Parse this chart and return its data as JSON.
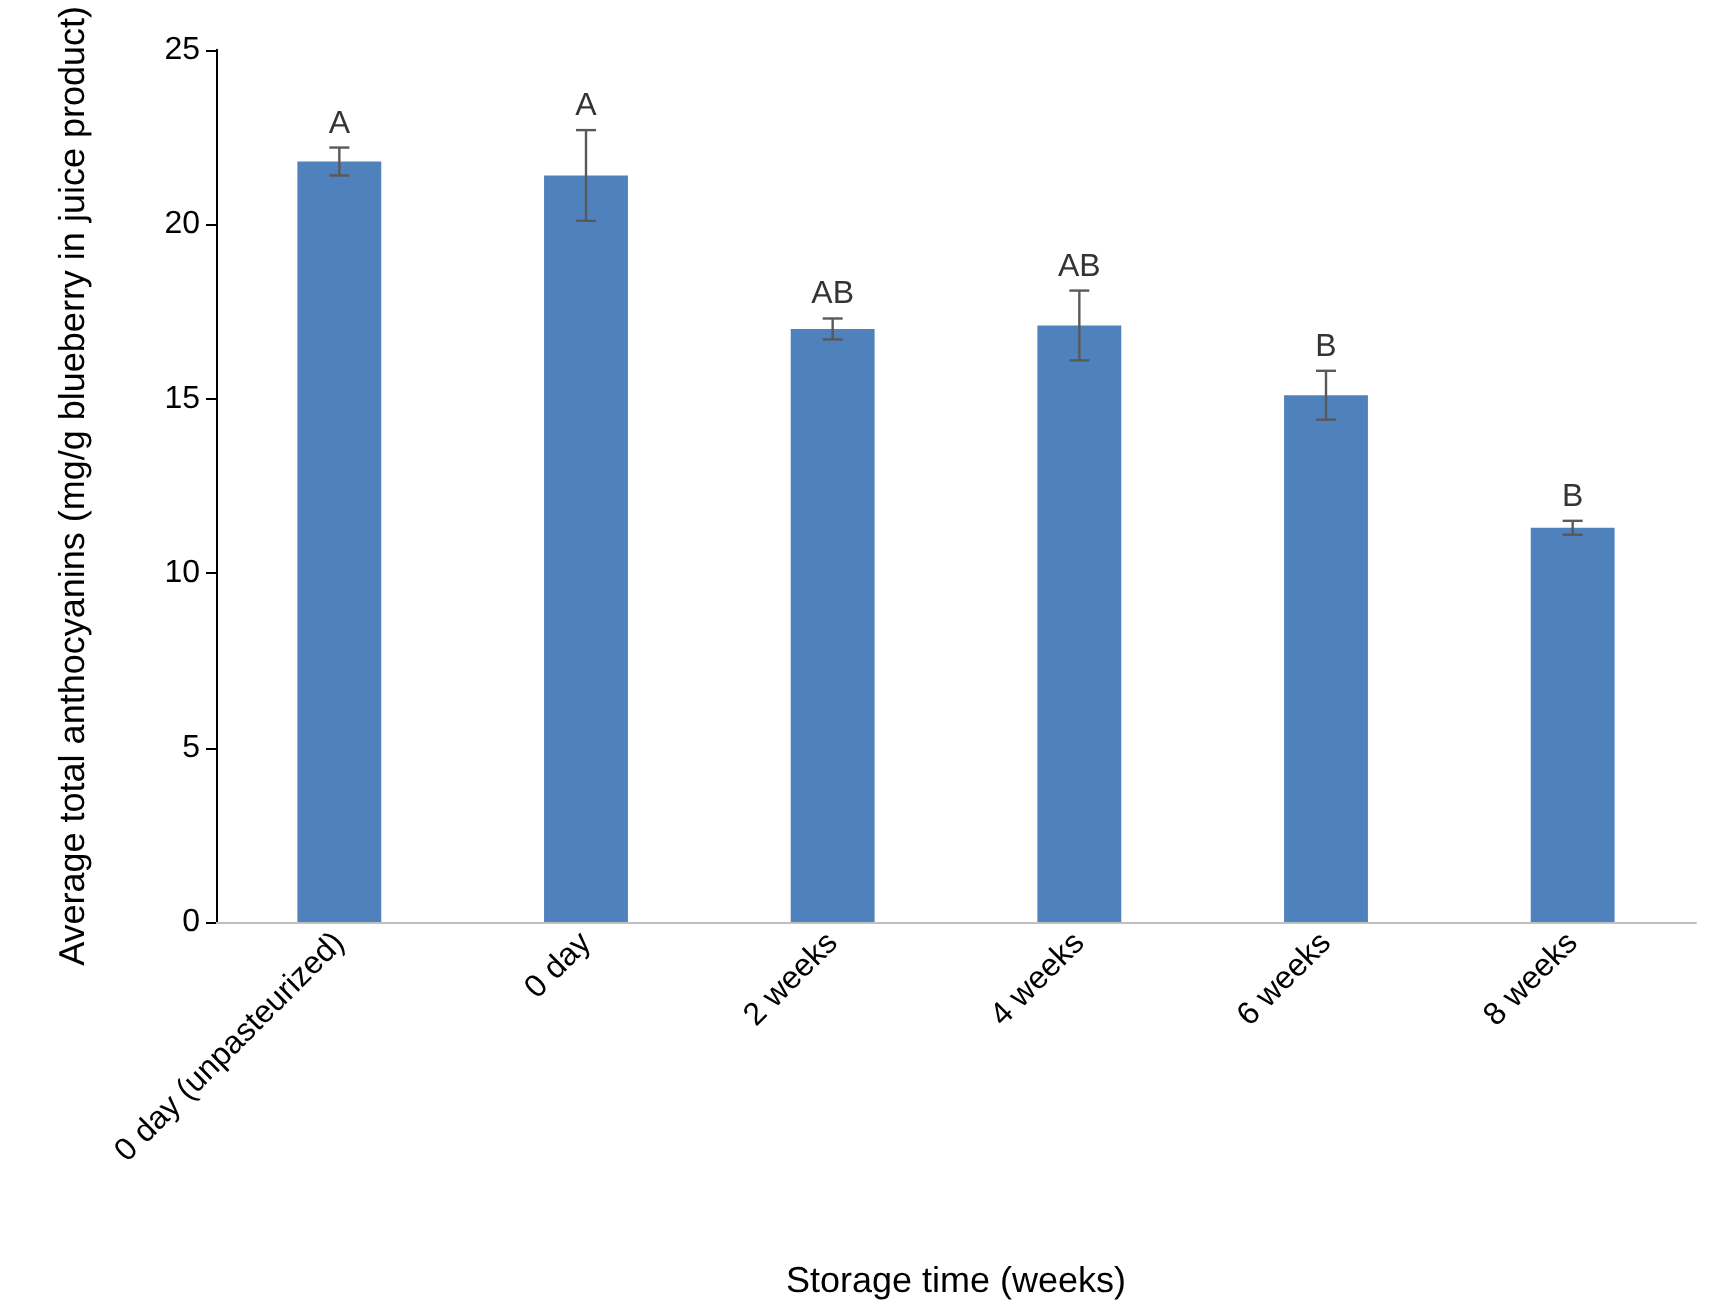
{
  "chart_data": {
    "type": "bar",
    "xlabel": "Storage time (weeks)",
    "ylabel": "Average total anthocyanins (mg/g blueberry in juice product)",
    "categories": [
      "0 day (unpasteurized)",
      "0 day",
      "2 weeks",
      "4 weeks",
      "6 weeks",
      "8 weeks"
    ],
    "values": [
      21.8,
      21.4,
      17.0,
      17.1,
      15.1,
      11.3
    ],
    "errors": [
      0.4,
      1.3,
      0.3,
      1.0,
      0.7,
      0.2
    ],
    "color": "#4f81bd",
    "ylim": [
      0,
      25
    ],
    "yticks": [
      0,
      5,
      10,
      15,
      20,
      25
    ],
    "grid": false,
    "annotations": [
      {
        "text": "A",
        "x": "0 day (unpasteurized)",
        "y": 22.2
      },
      {
        "text": "A",
        "x": "0 day",
        "y": 22.7
      },
      {
        "text": "AB",
        "x": "2 weeks",
        "y": 17.3
      },
      {
        "text": "AB",
        "x": "4 weeks",
        "y": 18.1
      },
      {
        "text": "B",
        "x": "6 weeks",
        "y": 15.8
      },
      {
        "text": "B",
        "x": "8 weeks",
        "y": 11.5
      }
    ]
  }
}
